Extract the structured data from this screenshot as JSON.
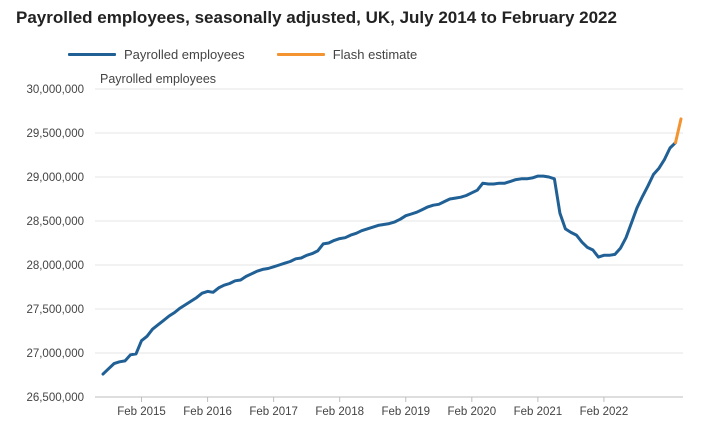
{
  "chart_data": {
    "type": "line",
    "title": "Payrolled employees, seasonally adjusted, UK, July 2014 to February 2022",
    "ylabel": "Payrolled employees",
    "xlabel": "",
    "ylim": [
      26500000,
      30000000
    ],
    "yticks": [
      26500000,
      27000000,
      27500000,
      28000000,
      28500000,
      29000000,
      29500000,
      30000000
    ],
    "ytick_labels": [
      "26,500,000",
      "27,000,000",
      "27,500,000",
      "28,000,000",
      "28,500,000",
      "29,000,000",
      "29,500,000",
      "30,000,000"
    ],
    "xtick_labels": [
      "Feb 2015",
      "Feb 2016",
      "Feb 2017",
      "Feb 2018",
      "Feb 2019",
      "Feb 2020",
      "Feb 2021",
      "Feb 2022"
    ],
    "x_start": "Jul 2014",
    "series": [
      {
        "name": "Payrolled employees",
        "color": "#206095",
        "values": [
          26760000,
          26820000,
          26880000,
          26900000,
          26910000,
          26980000,
          26990000,
          27140000,
          27190000,
          27270000,
          27320000,
          27370000,
          27420000,
          27460000,
          27510000,
          27550000,
          27590000,
          27630000,
          27680000,
          27700000,
          27690000,
          27740000,
          27770000,
          27790000,
          27820000,
          27830000,
          27870000,
          27900000,
          27930000,
          27950000,
          27960000,
          27980000,
          28000000,
          28020000,
          28040000,
          28070000,
          28080000,
          28110000,
          28130000,
          28160000,
          28240000,
          28250000,
          28280000,
          28300000,
          28310000,
          28340000,
          28360000,
          28390000,
          28410000,
          28430000,
          28450000,
          28460000,
          28470000,
          28490000,
          28520000,
          28560000,
          28580000,
          28600000,
          28630000,
          28660000,
          28680000,
          28690000,
          28720000,
          28750000,
          28760000,
          28770000,
          28790000,
          28820000,
          28850000,
          28930000,
          28920000,
          28920000,
          28930000,
          28930000,
          28950000,
          28970000,
          28980000,
          28980000,
          28990000,
          29010000,
          29010000,
          29000000,
          28980000,
          28590000,
          28410000,
          28370000,
          28340000,
          28260000,
          28200000,
          28170000,
          28090000,
          28110000,
          28110000,
          28120000,
          28190000,
          28310000,
          28480000,
          28650000,
          28780000,
          28900000,
          29030000,
          29100000,
          29200000,
          29330000,
          29390000
        ]
      },
      {
        "name": "Flash estimate",
        "color": "#f39431",
        "start_index": 104,
        "values": [
          29390000,
          29660000
        ]
      }
    ]
  }
}
